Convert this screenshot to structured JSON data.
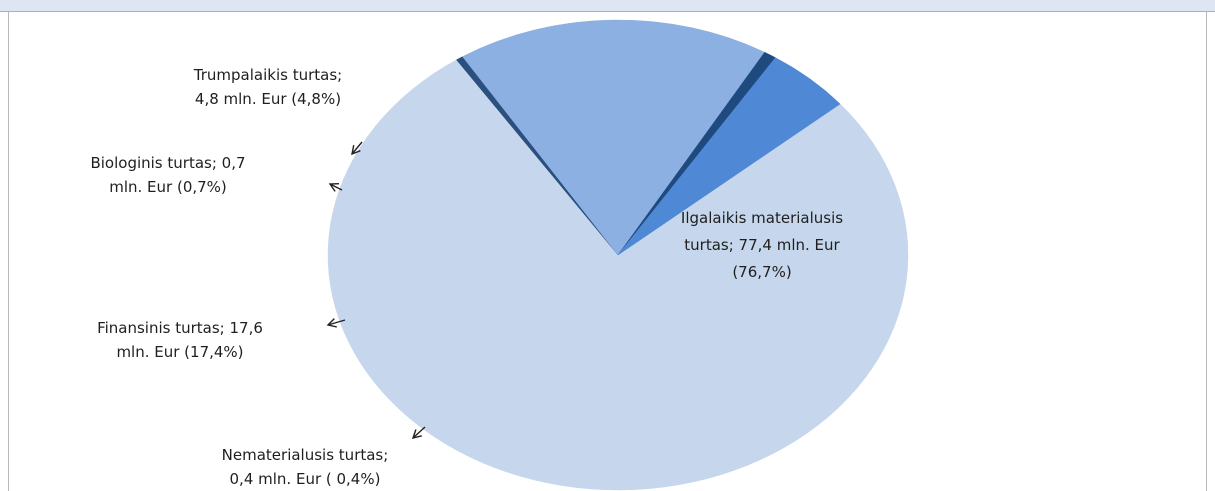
{
  "colors": {
    "ilgalaikis": "#c5d6ed",
    "nematerialusis": "#2b4f7e",
    "finansinis": "#8cb0e1",
    "biologinis": "#1f4a80",
    "trumpalaikis": "#4f88d4"
  },
  "chart_data": {
    "type": "pie",
    "slices": [
      {
        "key": "ilgalaikis",
        "label_lines": [
          "Ilgalaikis materialusis",
          "turtas; 77,4 mln. Eur",
          "(76,7%)"
        ],
        "value": 77.4,
        "percent": 76.7
      },
      {
        "key": "nematerialusis",
        "label_lines": [
          "Nematerialusis turtas;",
          "0,4 mln. Eur ( 0,4%)"
        ],
        "value": 0.4,
        "percent": 0.4
      },
      {
        "key": "finansinis",
        "label_lines": [
          "Finansinis turtas; 17,6",
          "mln. Eur (17,4%)"
        ],
        "value": 17.6,
        "percent": 17.4
      },
      {
        "key": "biologinis",
        "label_lines": [
          "Biologinis turtas; 0,7",
          "mln. Eur (0,7%)"
        ],
        "value": 0.7,
        "percent": 0.7
      },
      {
        "key": "trumpalaikis",
        "label_lines": [
          "Trumpalaikis turtas;",
          "4,8 mln. Eur (4,8%)"
        ],
        "value": 4.8,
        "percent": 4.8
      }
    ],
    "legend": "none"
  }
}
